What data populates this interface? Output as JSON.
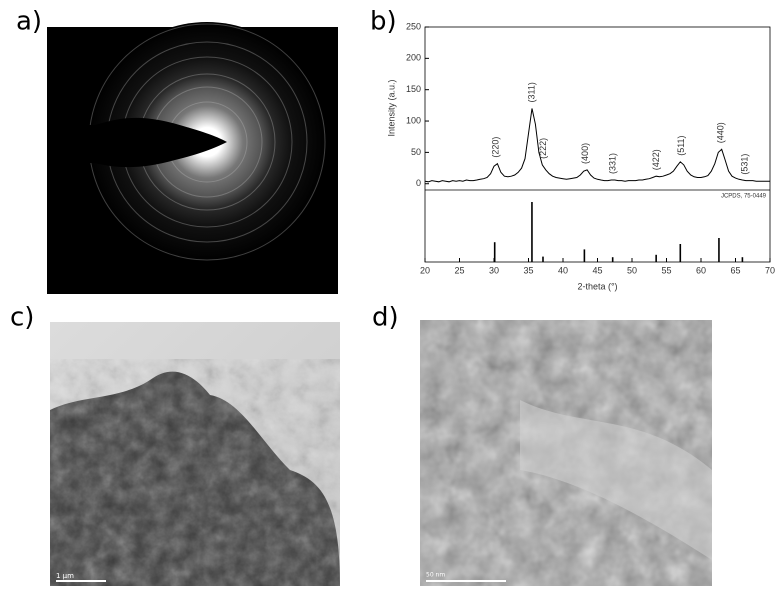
{
  "panel_labels": [
    "a)",
    "b)",
    "c)",
    "d)"
  ],
  "scale_bars": [
    "1 µm",
    "50 nm"
  ],
  "chart_data": {
    "type": "line",
    "xlabel": "2-theta (°)",
    "ylabel": "Intensity (a.u.)",
    "x": [
      20,
      20.5,
      21,
      21.5,
      22,
      22.5,
      23,
      23.5,
      24,
      24.5,
      25,
      25.5,
      26,
      26.5,
      27,
      27.5,
      28,
      28.5,
      29,
      29.5,
      30,
      30.5,
      31,
      31.5,
      32,
      32.5,
      33,
      33.5,
      34,
      34.5,
      35,
      35.5,
      36,
      36.5,
      37,
      37.5,
      38,
      38.5,
      39,
      39.5,
      40,
      40.5,
      41,
      41.5,
      42,
      42.5,
      43,
      43.5,
      44,
      44.5,
      45,
      45.5,
      46,
      46.5,
      47,
      47.5,
      48,
      48.5,
      49,
      49.5,
      50,
      50.5,
      51,
      51.5,
      52,
      52.5,
      53,
      53.5,
      54,
      54.5,
      55,
      55.5,
      56,
      56.5,
      57,
      57.5,
      58,
      58.5,
      59,
      59.5,
      60,
      60.5,
      61,
      61.5,
      62,
      62.5,
      63,
      63.5,
      64,
      64.5,
      65,
      65.5,
      66,
      66.5,
      67,
      67.5,
      68,
      68.5,
      69,
      69.5,
      70
    ],
    "values": [
      4,
      3,
      5,
      4,
      3,
      5,
      4,
      3,
      5,
      4,
      5,
      4,
      6,
      5,
      5,
      6,
      7,
      8,
      10,
      16,
      28,
      32,
      18,
      12,
      11,
      12,
      14,
      18,
      25,
      40,
      80,
      120,
      95,
      50,
      30,
      22,
      16,
      12,
      10,
      9,
      8,
      7,
      8,
      9,
      10,
      14,
      20,
      22,
      14,
      9,
      7,
      6,
      5,
      5,
      6,
      6,
      5,
      5,
      4,
      5,
      5,
      5,
      6,
      6,
      7,
      8,
      10,
      12,
      11,
      12,
      14,
      16,
      20,
      28,
      35,
      30,
      20,
      14,
      11,
      10,
      10,
      11,
      13,
      20,
      32,
      50,
      55,
      38,
      20,
      12,
      9,
      7,
      6,
      5,
      5,
      5,
      4,
      4,
      4,
      4,
      4
    ],
    "color": "#000000",
    "xlim": [
      20,
      70
    ],
    "xticks": [
      20,
      25,
      30,
      35,
      40,
      45,
      50,
      55,
      60,
      65,
      70
    ],
    "ylim": [
      -10,
      250
    ],
    "yticks": [
      0,
      50,
      100,
      150,
      200,
      250
    ],
    "annotations": [
      {
        "text": "(220)",
        "x": 30.3
      },
      {
        "text": "(311)",
        "x": 35.5
      },
      {
        "text": "(222)",
        "x": 37.2
      },
      {
        "text": "(400)",
        "x": 43.3
      },
      {
        "text": "(331)",
        "x": 47.3
      },
      {
        "text": "(422)",
        "x": 53.6
      },
      {
        "text": "(511)",
        "x": 57.2
      },
      {
        "text": "(440)",
        "x": 62.9
      },
      {
        "text": "(531)",
        "x": 66.4
      }
    ],
    "reference": {
      "label": "JCPDS, 75-0449",
      "positions": [
        30.1,
        35.5,
        37.1,
        43.1,
        47.2,
        53.5,
        57.0,
        62.6,
        66.0
      ],
      "intensities": [
        33,
        100,
        9,
        21,
        8,
        12,
        30,
        40,
        8
      ]
    }
  }
}
